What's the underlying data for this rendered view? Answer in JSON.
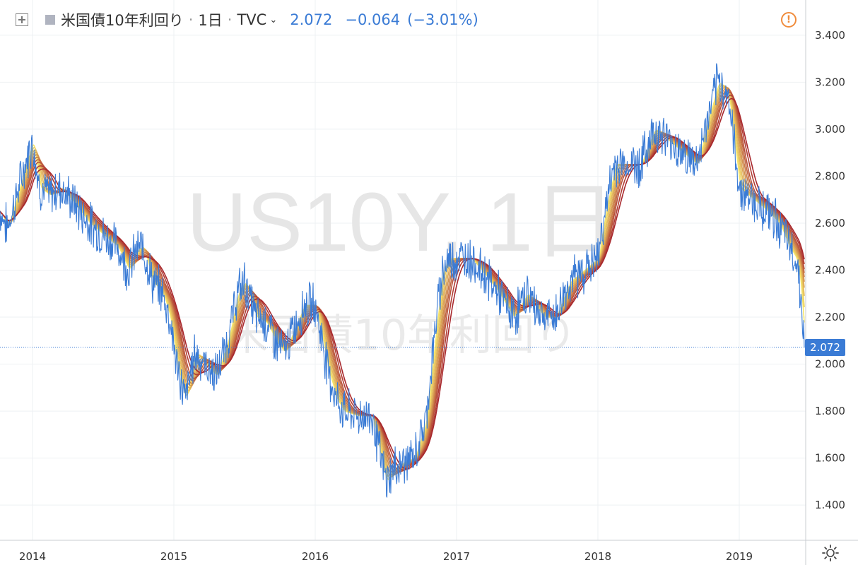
{
  "header": {
    "title": "米国債10年利回り",
    "interval": "1日",
    "source": "TVC",
    "last": "2.072",
    "change": "−0.064",
    "change_pct": "(−3.01%)"
  },
  "watermark": {
    "symbol": "US10Y, 1日",
    "name": "米国債10年利回り"
  },
  "price_badge": "2.072",
  "colors": {
    "price_line": "#3a7bd5",
    "ribbon_light": "#f5e56b",
    "ribbon_dark": "#a8282d",
    "alert": "#f08c3c"
  },
  "chart_data": {
    "type": "line",
    "x_tick_labels": [
      "2014",
      "2015",
      "2016",
      "2017",
      "2018",
      "2019"
    ],
    "y_tick_labels": [
      "1.400",
      "1.600",
      "1.800",
      "2.000",
      "2.200",
      "2.400",
      "2.600",
      "2.800",
      "3.000",
      "3.200",
      "3.400"
    ],
    "ylim": [
      1.25,
      3.55
    ],
    "xlim": [
      2013.77,
      2019.47
    ],
    "last_value": 2.072,
    "series": [
      {
        "x": [
          2013.77,
          2013.82,
          2013.88,
          2013.95,
          2014.0,
          2014.05,
          2014.12,
          2014.2,
          2014.3,
          2014.4,
          2014.5,
          2014.6,
          2014.68,
          2014.73,
          2014.78,
          2014.85,
          2014.92,
          2014.97,
          2015.02,
          2015.08,
          2015.15,
          2015.22,
          2015.3,
          2015.38,
          2015.45,
          2015.5,
          2015.58,
          2015.65,
          2015.72,
          2015.78,
          2015.85,
          2015.92,
          2016.0,
          2016.05,
          2016.1,
          2016.15,
          2016.2,
          2016.3,
          2016.4,
          2016.5,
          2016.55,
          2016.62,
          2016.7,
          2016.78,
          2016.85,
          2016.9,
          2016.95,
          2017.0,
          2017.1,
          2017.2,
          2017.3,
          2017.4,
          2017.5,
          2017.55,
          2017.62,
          2017.7,
          2017.8,
          2017.9,
          2018.0,
          2018.05,
          2018.12,
          2018.2,
          2018.3,
          2018.4,
          2018.5,
          2018.6,
          2018.7,
          2018.78,
          2018.85,
          2018.92,
          2019.0,
          2019.1,
          2019.2,
          2019.28,
          2019.35,
          2019.4,
          2019.42,
          2019.44,
          2019.46
        ],
        "y": [
          2.65,
          2.58,
          2.7,
          2.85,
          2.95,
          2.75,
          2.72,
          2.75,
          2.68,
          2.6,
          2.55,
          2.5,
          2.4,
          2.48,
          2.5,
          2.35,
          2.3,
          2.2,
          2.0,
          1.85,
          2.05,
          2.0,
          1.95,
          2.1,
          2.3,
          2.35,
          2.2,
          2.18,
          2.1,
          2.05,
          2.15,
          2.25,
          2.25,
          2.1,
          1.95,
          1.85,
          1.8,
          1.78,
          1.78,
          1.5,
          1.55,
          1.58,
          1.6,
          1.75,
          2.15,
          2.4,
          2.45,
          2.45,
          2.45,
          2.38,
          2.3,
          2.2,
          2.3,
          2.25,
          2.2,
          2.2,
          2.35,
          2.4,
          2.45,
          2.65,
          2.85,
          2.85,
          2.85,
          3.0,
          2.95,
          2.9,
          2.85,
          3.05,
          3.2,
          3.15,
          2.75,
          2.7,
          2.65,
          2.6,
          2.5,
          2.45,
          2.4,
          2.25,
          2.07
        ]
      }
    ]
  }
}
